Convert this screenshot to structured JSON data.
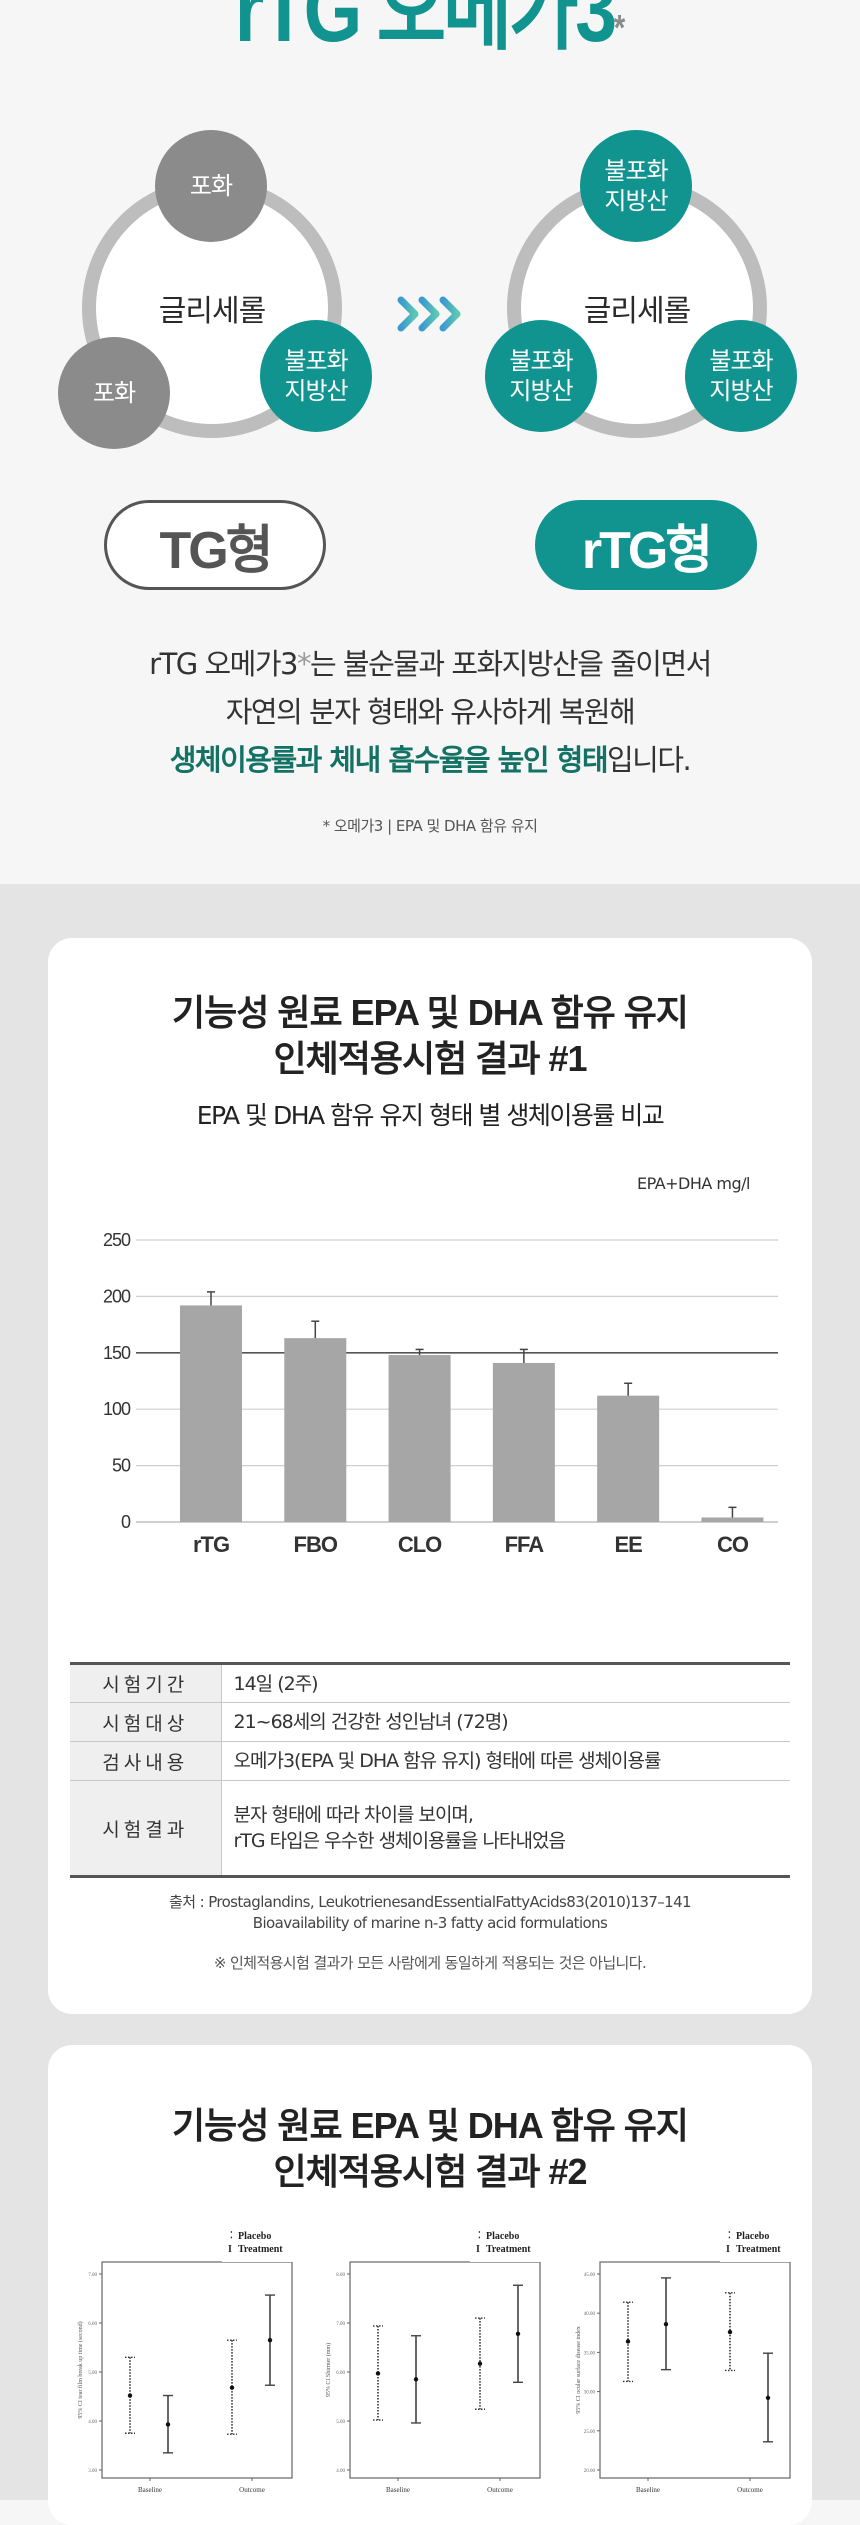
{
  "hero": {
    "title": "rTG 오메가3",
    "title_star": "*"
  },
  "diagrams": {
    "left": {
      "center": "글리세롤",
      "nodes": [
        {
          "label": "포화",
          "type": "saturated",
          "position": "top"
        },
        {
          "label": "포화",
          "type": "saturated",
          "position": "bottom-left"
        },
        {
          "label": "불포화\n지방산",
          "type": "unsaturated",
          "position": "bottom-right"
        }
      ],
      "pill": "TG형"
    },
    "right": {
      "center": "글리세롤",
      "nodes": [
        {
          "label": "불포화\n지방산",
          "type": "unsaturated",
          "position": "top"
        },
        {
          "label": "불포화\n지방산",
          "type": "unsaturated",
          "position": "bottom-left"
        },
        {
          "label": "불포화\n지방산",
          "type": "unsaturated",
          "position": "bottom-right"
        }
      ],
      "pill": "rTG형"
    },
    "arrow_icon": "triple-chevron-right"
  },
  "description": {
    "line1_a": "rTG 오메가3",
    "line1_star": "*",
    "line1_b": "는 불순물과 포화지방산을 줄이면서",
    "line2": "자연의 분자 형태와 유사하게 복원해",
    "line3_highlight": "생체이용률과 체내 흡수율을 높인 형태",
    "line3_rest": "입니다.",
    "footnote": "* 오메가3 | EPA 및 DHA 함유 유지"
  },
  "colors": {
    "teal": "#11948f",
    "teal_dark_text": "#137264",
    "grey_node": "#8b8b8b",
    "ring": "#bdbdbd",
    "bar": "#a6a6a6",
    "page_bg": "#f6f6f6",
    "section_bg": "#e4e4e4"
  },
  "card1": {
    "title_line1": "기능성 원료 EPA 및 DHA 함유 유지",
    "title_line2": "인체적용시험 결과 #1",
    "subtitle": "EPA 및 DHA 함유 유지 형태 별 생체이용률 비교",
    "unit": "EPA+DHA mg/l",
    "table": [
      {
        "label": "시험기간",
        "value": "14일 (2주)"
      },
      {
        "label": "시험대상",
        "value": "21~68세의 건강한 성인남녀 (72명)"
      },
      {
        "label": "검사내용",
        "value": "오메가3(EPA 및 DHA 함유 유지) 형태에 따른 생체이용률"
      },
      {
        "label": "시험결과",
        "value": "분자 형태에 따라 차이를 보이며,\nrTG 타입은 우수한 생체이용률을 나타내었음"
      }
    ],
    "source_line1": "출처 : Prostaglandins, LeukotrienesandEssentialFattyAcids83(2010)137–141",
    "source_line2": "Bioavailability of marine n-3 fatty acid formulations",
    "disclaimer": "※ 인체적용시험 결과가 모든 사람에게 동일하게 적용되는 것은 아닙니다."
  },
  "card2": {
    "title_line1": "기능성 원료 EPA 및 DHA 함유 유지",
    "title_line2": "인체적용시험 결과 #2"
  },
  "chart_data": [
    {
      "type": "bar",
      "title": "EPA 및 DHA 함유 유지 형태 별 생체이용률 비교",
      "xlabel": "",
      "ylabel": "EPA+DHA mg/l",
      "categories": [
        "rTG",
        "FBO",
        "CLO",
        "FFA",
        "EE",
        "CO"
      ],
      "values": [
        192,
        163,
        148,
        141,
        112,
        4
      ],
      "error_upper": [
        204,
        178,
        153,
        153,
        123,
        13
      ],
      "yticks": [
        0,
        50,
        100,
        150,
        200,
        250
      ],
      "ylim": [
        0,
        250
      ],
      "grid": true,
      "highlight_gridline": 150
    },
    {
      "type": "scatter",
      "subtype": "confidence-interval",
      "ylabel": "95% CI tear film break up time (second)",
      "categories": [
        "Baseline",
        "Outcome"
      ],
      "yticks": [
        "3.00",
        "4.00",
        "5.00",
        "6.00",
        "7.00"
      ],
      "ylim": [
        3,
        7
      ],
      "legend": [
        "Placebo",
        "Treatment"
      ],
      "series": [
        {
          "name": "Placebo",
          "style": "dotted",
          "mean": [
            4.52,
            4.68
          ],
          "lower": [
            3.75,
            3.73
          ],
          "upper": [
            5.3,
            5.65
          ]
        },
        {
          "name": "Treatment",
          "style": "solid",
          "mean": [
            3.93,
            5.65
          ],
          "lower": [
            3.35,
            4.73
          ],
          "upper": [
            4.52,
            6.57
          ]
        }
      ]
    },
    {
      "type": "scatter",
      "subtype": "confidence-interval",
      "ylabel": "95% CI Shirmer (mm)",
      "categories": [
        "Baseline",
        "Outcome"
      ],
      "yticks": [
        "4.00",
        "5.00",
        "6.00",
        "7.00",
        "8.00"
      ],
      "ylim": [
        4,
        8
      ],
      "legend": [
        "Placebo",
        "Treatment"
      ],
      "series": [
        {
          "name": "Placebo",
          "style": "dotted",
          "mean": [
            5.97,
            6.17
          ],
          "lower": [
            5.02,
            5.24
          ],
          "upper": [
            6.94,
            7.1
          ]
        },
        {
          "name": "Treatment",
          "style": "solid",
          "mean": [
            5.85,
            6.78
          ],
          "lower": [
            4.96,
            5.79
          ],
          "upper": [
            6.74,
            7.77
          ]
        }
      ]
    },
    {
      "type": "scatter",
      "subtype": "confidence-interval",
      "ylabel": "95% CI ocular surface disease index",
      "categories": [
        "Baseline",
        "Outcome"
      ],
      "yticks": [
        "20.00",
        "25.00",
        "30.00",
        "35.00",
        "40.00",
        "45.00"
      ],
      "ylim": [
        20,
        45
      ],
      "legend": [
        "Placebo",
        "Treatment"
      ],
      "series": [
        {
          "name": "Placebo",
          "style": "dotted",
          "mean": [
            36.4,
            37.6
          ],
          "lower": [
            31.3,
            32.7
          ],
          "upper": [
            41.4,
            42.6
          ]
        },
        {
          "name": "Treatment",
          "style": "solid",
          "mean": [
            38.6,
            29.2
          ],
          "lower": [
            32.8,
            23.6
          ],
          "upper": [
            44.5,
            34.9
          ]
        }
      ]
    }
  ]
}
